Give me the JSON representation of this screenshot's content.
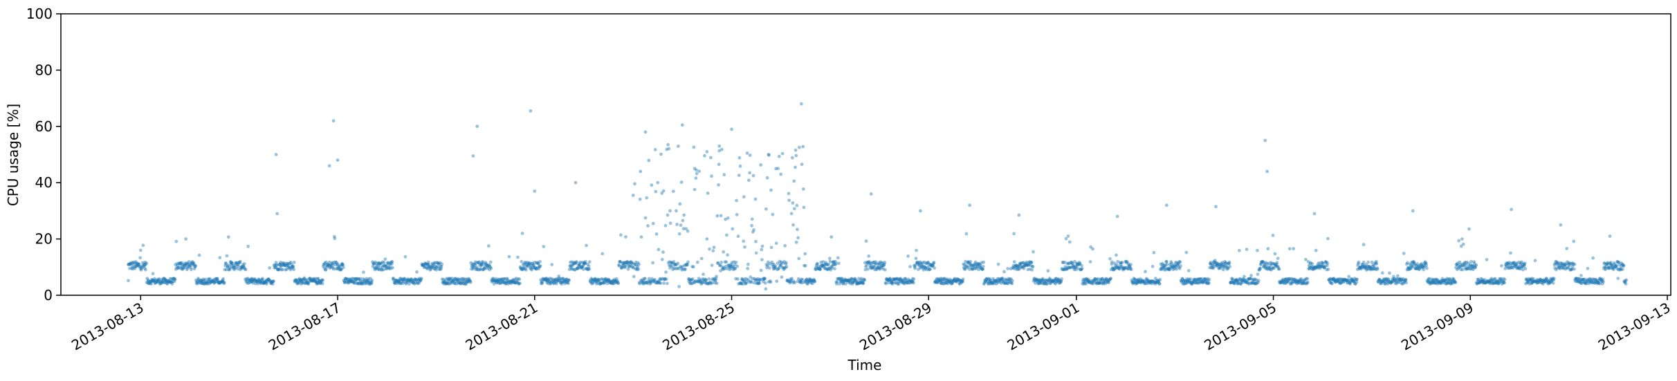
{
  "chart_data": {
    "type": "scatter",
    "xlabel": "Time",
    "ylabel": "CPU usage [%]",
    "ylim": [
      0,
      100
    ],
    "xlim": [
      "2013-08-11",
      "2013-09-13"
    ],
    "x_is_date": true,
    "grid": false,
    "point_color": "#1f77b4",
    "y_ticks": [
      "0",
      "20",
      "40",
      "60",
      "80",
      "100"
    ],
    "y_tick_values": [
      0,
      20,
      40,
      60,
      80,
      100
    ],
    "x_ticks": [
      "2013-08-13",
      "2013-08-17",
      "2013-08-21",
      "2013-08-25",
      "2013-08-29",
      "2013-09-01",
      "2013-09-05",
      "2013-09-09",
      "2013-09-13"
    ],
    "series": [
      {
        "values_note": "Dense CPU usage samples; daily cycle between ~5% (night) and ~11% (day), heavy noise 0-55% between 2013-08-23 and 2013-08-26",
        "points": [
          [
            "2013-08-12T18:00",
            5.2
          ],
          [
            "2013-08-12T22:00",
            10.5
          ],
          [
            "2013-08-13T00:00",
            16.0
          ],
          [
            "2013-08-13T02:00",
            11.0
          ],
          [
            "2013-08-13T06:00",
            5.0
          ],
          [
            "2013-08-13T12:00",
            4.5
          ],
          [
            "2013-08-13T20:00",
            11.5
          ],
          [
            "2013-08-13T22:00",
            20.0
          ],
          [
            "2013-08-14T06:00",
            5.0
          ],
          [
            "2013-08-14T14:00",
            4.8
          ],
          [
            "2013-08-14T20:00",
            11.0
          ],
          [
            "2013-08-15T06:00",
            5.0
          ],
          [
            "2013-08-15T12:00",
            4.5
          ],
          [
            "2013-08-15T20:00",
            11.0
          ],
          [
            "2013-08-15T18:00",
            50.0
          ],
          [
            "2013-08-15T18:30",
            29.0
          ],
          [
            "2013-08-16T06:00",
            5.0
          ],
          [
            "2013-08-16T14:00",
            4.5
          ],
          [
            "2013-08-16T20:00",
            46.0
          ],
          [
            "2013-08-16T22:00",
            62.0
          ],
          [
            "2013-08-17T00:00",
            48.0
          ],
          [
            "2013-08-17T02:00",
            11.0
          ],
          [
            "2013-08-17T06:00",
            5.0
          ],
          [
            "2013-08-17T20:00",
            11.5
          ],
          [
            "2013-08-18T06:00",
            5.0
          ],
          [
            "2013-08-18T20:00",
            11.0
          ],
          [
            "2013-08-19T06:00",
            4.8
          ],
          [
            "2013-08-19T18:00",
            49.5
          ],
          [
            "2013-08-19T20:00",
            60.0
          ],
          [
            "2013-08-19T22:00",
            11.0
          ],
          [
            "2013-08-20T06:00",
            5.0
          ],
          [
            "2013-08-20T18:00",
            22.0
          ],
          [
            "2013-08-20T22:00",
            65.5
          ],
          [
            "2013-08-21T00:00",
            37.0
          ],
          [
            "2013-08-21T06:00",
            6.0
          ],
          [
            "2013-08-21T20:00",
            40.0
          ],
          [
            "2013-08-22T00:00",
            11.5
          ],
          [
            "2013-08-22T06:00",
            5.5
          ],
          [
            "2013-08-22T20:00",
            11.5
          ],
          [
            "2013-08-23T06:00",
            58.0
          ],
          [
            "2013-08-23T12:00",
            40.0
          ],
          [
            "2013-08-23T18:00",
            30.0
          ],
          [
            "2013-08-24T00:00",
            60.5
          ],
          [
            "2013-08-24T06:00",
            45.0
          ],
          [
            "2013-08-24T12:00",
            20.0
          ],
          [
            "2013-08-24T18:00",
            53.0
          ],
          [
            "2013-08-25T00:00",
            59.0
          ],
          [
            "2013-08-25T06:00",
            35.0
          ],
          [
            "2013-08-25T12:00",
            15.0
          ],
          [
            "2013-08-25T18:00",
            50.0
          ],
          [
            "2013-08-26T00:00",
            43.0
          ],
          [
            "2013-08-26T06:00",
            25.0
          ],
          [
            "2013-08-26T10:00",
            68.0
          ],
          [
            "2013-08-26T12:00",
            10.5
          ],
          [
            "2013-08-27T06:00",
            5.0
          ],
          [
            "2013-08-27T20:00",
            36.0
          ],
          [
            "2013-08-28T00:00",
            11.0
          ],
          [
            "2013-08-28T06:00",
            5.0
          ],
          [
            "2013-08-28T20:00",
            30.0
          ],
          [
            "2013-08-29T06:00",
            5.0
          ],
          [
            "2013-08-29T20:00",
            32.0
          ],
          [
            "2013-08-30T06:00",
            5.0
          ],
          [
            "2013-08-30T20:00",
            28.5
          ],
          [
            "2013-08-31T06:00",
            5.0
          ],
          [
            "2013-08-31T20:00",
            21.0
          ],
          [
            "2013-09-01T06:00",
            5.0
          ],
          [
            "2013-09-01T20:00",
            28.0
          ],
          [
            "2013-09-02T06:00",
            5.0
          ],
          [
            "2013-09-02T20:00",
            32.0
          ],
          [
            "2013-09-03T06:00",
            5.0
          ],
          [
            "2013-09-03T20:00",
            31.5
          ],
          [
            "2013-09-04T06:00",
            5.0
          ],
          [
            "2013-09-04T20:00",
            55.0
          ],
          [
            "2013-09-04T21:00",
            44.0
          ],
          [
            "2013-09-05T06:00",
            5.0
          ],
          [
            "2013-09-05T20:00",
            29.0
          ],
          [
            "2013-09-06T06:00",
            5.0
          ],
          [
            "2013-09-06T20:00",
            18.0
          ],
          [
            "2013-09-07T06:00",
            5.0
          ],
          [
            "2013-09-07T20:00",
            30.0
          ],
          [
            "2013-09-08T06:00",
            5.0
          ],
          [
            "2013-09-08T20:00",
            20.0
          ],
          [
            "2013-09-09T06:00",
            5.0
          ],
          [
            "2013-09-09T20:00",
            30.5
          ],
          [
            "2013-09-10T06:00",
            6.0
          ],
          [
            "2013-09-10T20:00",
            25.0
          ],
          [
            "2013-09-11T06:00",
            7.0
          ],
          [
            "2013-09-11T20:00",
            21.0
          ],
          [
            "2013-09-12T00:00",
            6.0
          ]
        ]
      }
    ]
  }
}
